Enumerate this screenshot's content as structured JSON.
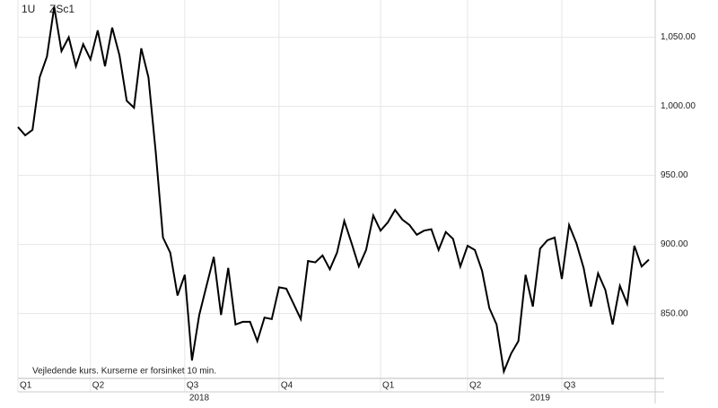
{
  "chart_data": {
    "type": "line",
    "symbol_labels": [
      "1U",
      "ZSc1"
    ],
    "note": "Vejledende kurs. Kurserne er forsinket 10 min.",
    "series": [
      {
        "color": "#000000",
        "values": [
          985,
          979,
          983,
          1021,
          1036,
          1072,
          1040,
          1050,
          1029,
          1045,
          1034,
          1055,
          1029,
          1057,
          1037,
          1004,
          999,
          1042,
          1021,
          967,
          905,
          894,
          863,
          878,
          816,
          849,
          870,
          891,
          849,
          883,
          842,
          844,
          844,
          830,
          847,
          846,
          869,
          868,
          857,
          846,
          888,
          887,
          892,
          882,
          894,
          917,
          901,
          884,
          896,
          921,
          910,
          916,
          925,
          918,
          914,
          907,
          910,
          911,
          896,
          909,
          904,
          884,
          899,
          896,
          881,
          854,
          842,
          808,
          821,
          830,
          878,
          855,
          897,
          903,
          905,
          875,
          914,
          901,
          883,
          855,
          879,
          867,
          842,
          870,
          857,
          899,
          884,
          889
        ]
      }
    ],
    "ylim": [
      803,
      1077
    ],
    "yticks": [
      {
        "value": 850,
        "label": "850.00"
      },
      {
        "value": 900,
        "label": "900.00"
      },
      {
        "value": 950,
        "label": "950.00"
      },
      {
        "value": 1000,
        "label": "1,000.00"
      },
      {
        "value": 1050,
        "label": "1,050.00"
      }
    ],
    "xticks": [
      {
        "value": 0,
        "label": "Q1"
      },
      {
        "value": 10,
        "label": "Q2"
      },
      {
        "value": 23,
        "label": "Q3"
      },
      {
        "value": 36,
        "label": "Q4"
      },
      {
        "value": 50,
        "label": "Q1"
      },
      {
        "value": 62,
        "label": "Q2"
      },
      {
        "value": 75,
        "label": "Q3"
      }
    ],
    "year_ticks": [
      {
        "value": 25,
        "label": "2018"
      },
      {
        "value": 72,
        "label": "2019"
      }
    ],
    "grid": true
  }
}
